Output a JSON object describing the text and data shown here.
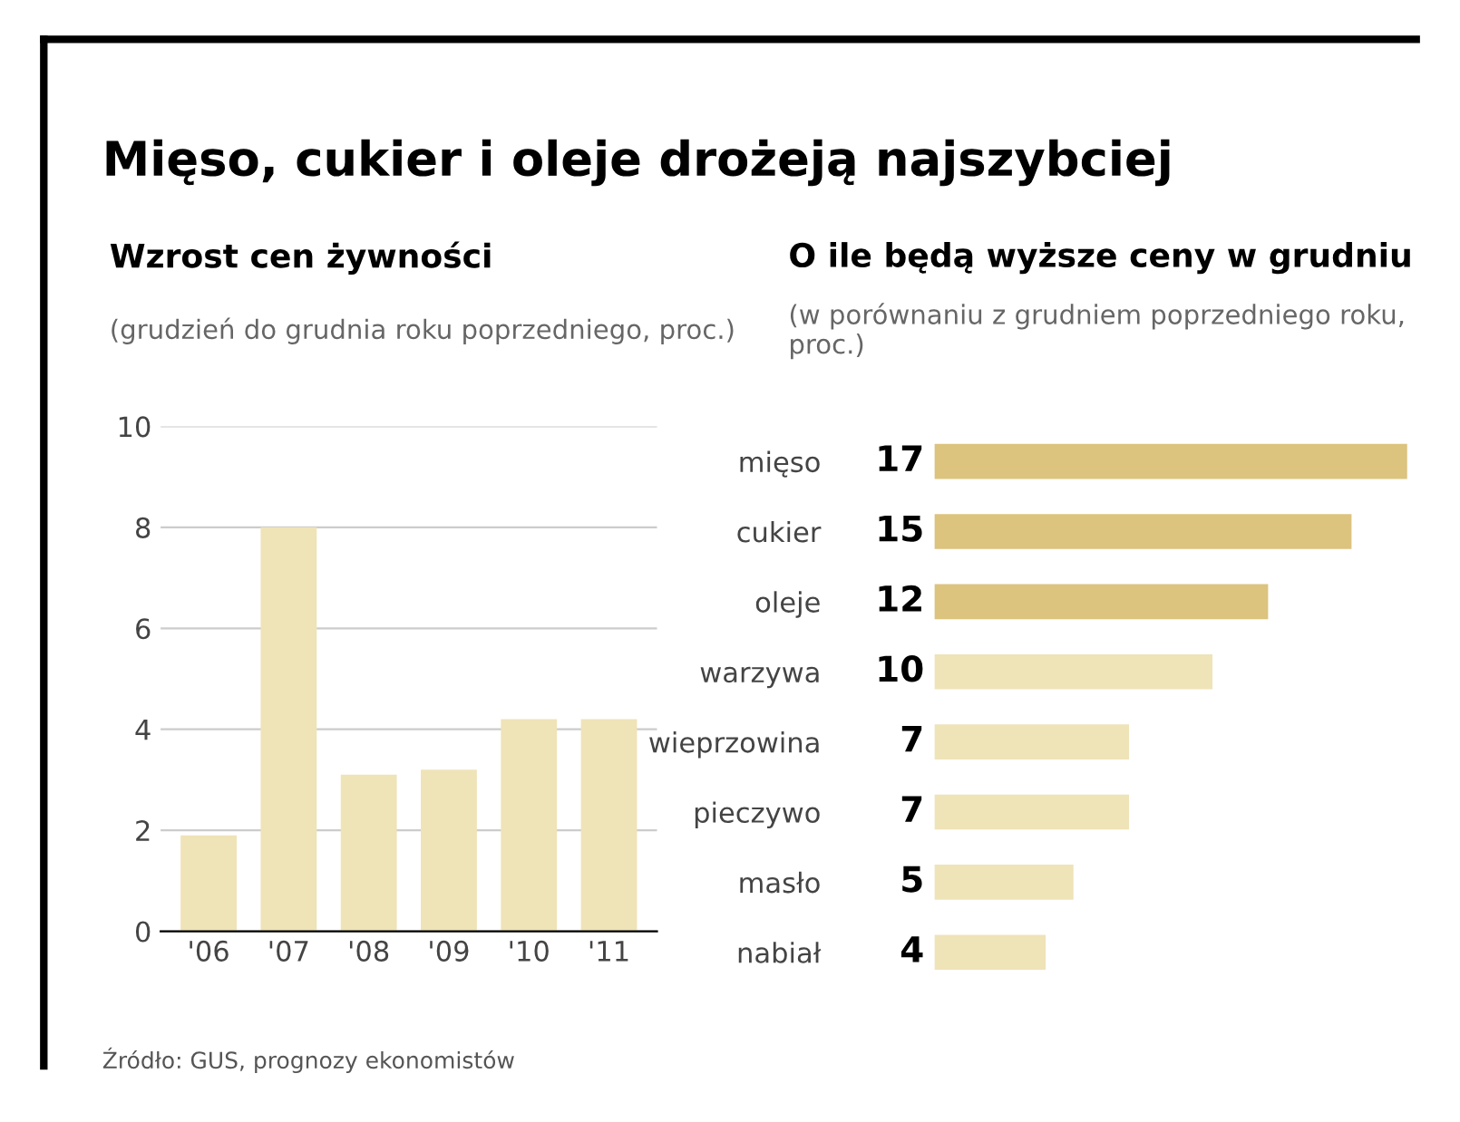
{
  "chart_data": [
    {
      "type": "bar",
      "title": "Mięso, cukier i oleje drożeją najszybciej",
      "subtitle": "Wzrost cen żywności",
      "ylabel": "(grudzień do grudnia roku poprzedniego, proc.)",
      "categories": [
        "'06",
        "'07",
        "'08",
        "'09",
        "'10",
        "'11"
      ],
      "values": [
        1.9,
        8.0,
        3.1,
        3.2,
        4.2,
        4.2
      ],
      "color": "#efe3b8",
      "ylim": [
        0,
        10
      ],
      "yticks": [
        0,
        2,
        4,
        6,
        8,
        10
      ],
      "grid": "y",
      "annotations": [
        "Źródło: GUS, prognozy ekonomistów"
      ]
    },
    {
      "type": "bar",
      "orientation": "horizontal",
      "subtitle": "O ile będą wyższe ceny w grudniu",
      "xlabel": "(w porównaniu z grudniem poprzedniego roku, proc.)",
      "categories": [
        "mięso",
        "cukier",
        "oleje",
        "warzywa",
        "wieprzowina",
        "pieczywo",
        "masło",
        "nabiał"
      ],
      "values": [
        17,
        15,
        12,
        10,
        7,
        7,
        5,
        4
      ],
      "colors": [
        "#dcc37e",
        "#dcc37e",
        "#dcc37e",
        "#efe3b8",
        "#efe3b8",
        "#efe3b8",
        "#efe3b8",
        "#efe3b8"
      ],
      "data_labels": true
    }
  ]
}
